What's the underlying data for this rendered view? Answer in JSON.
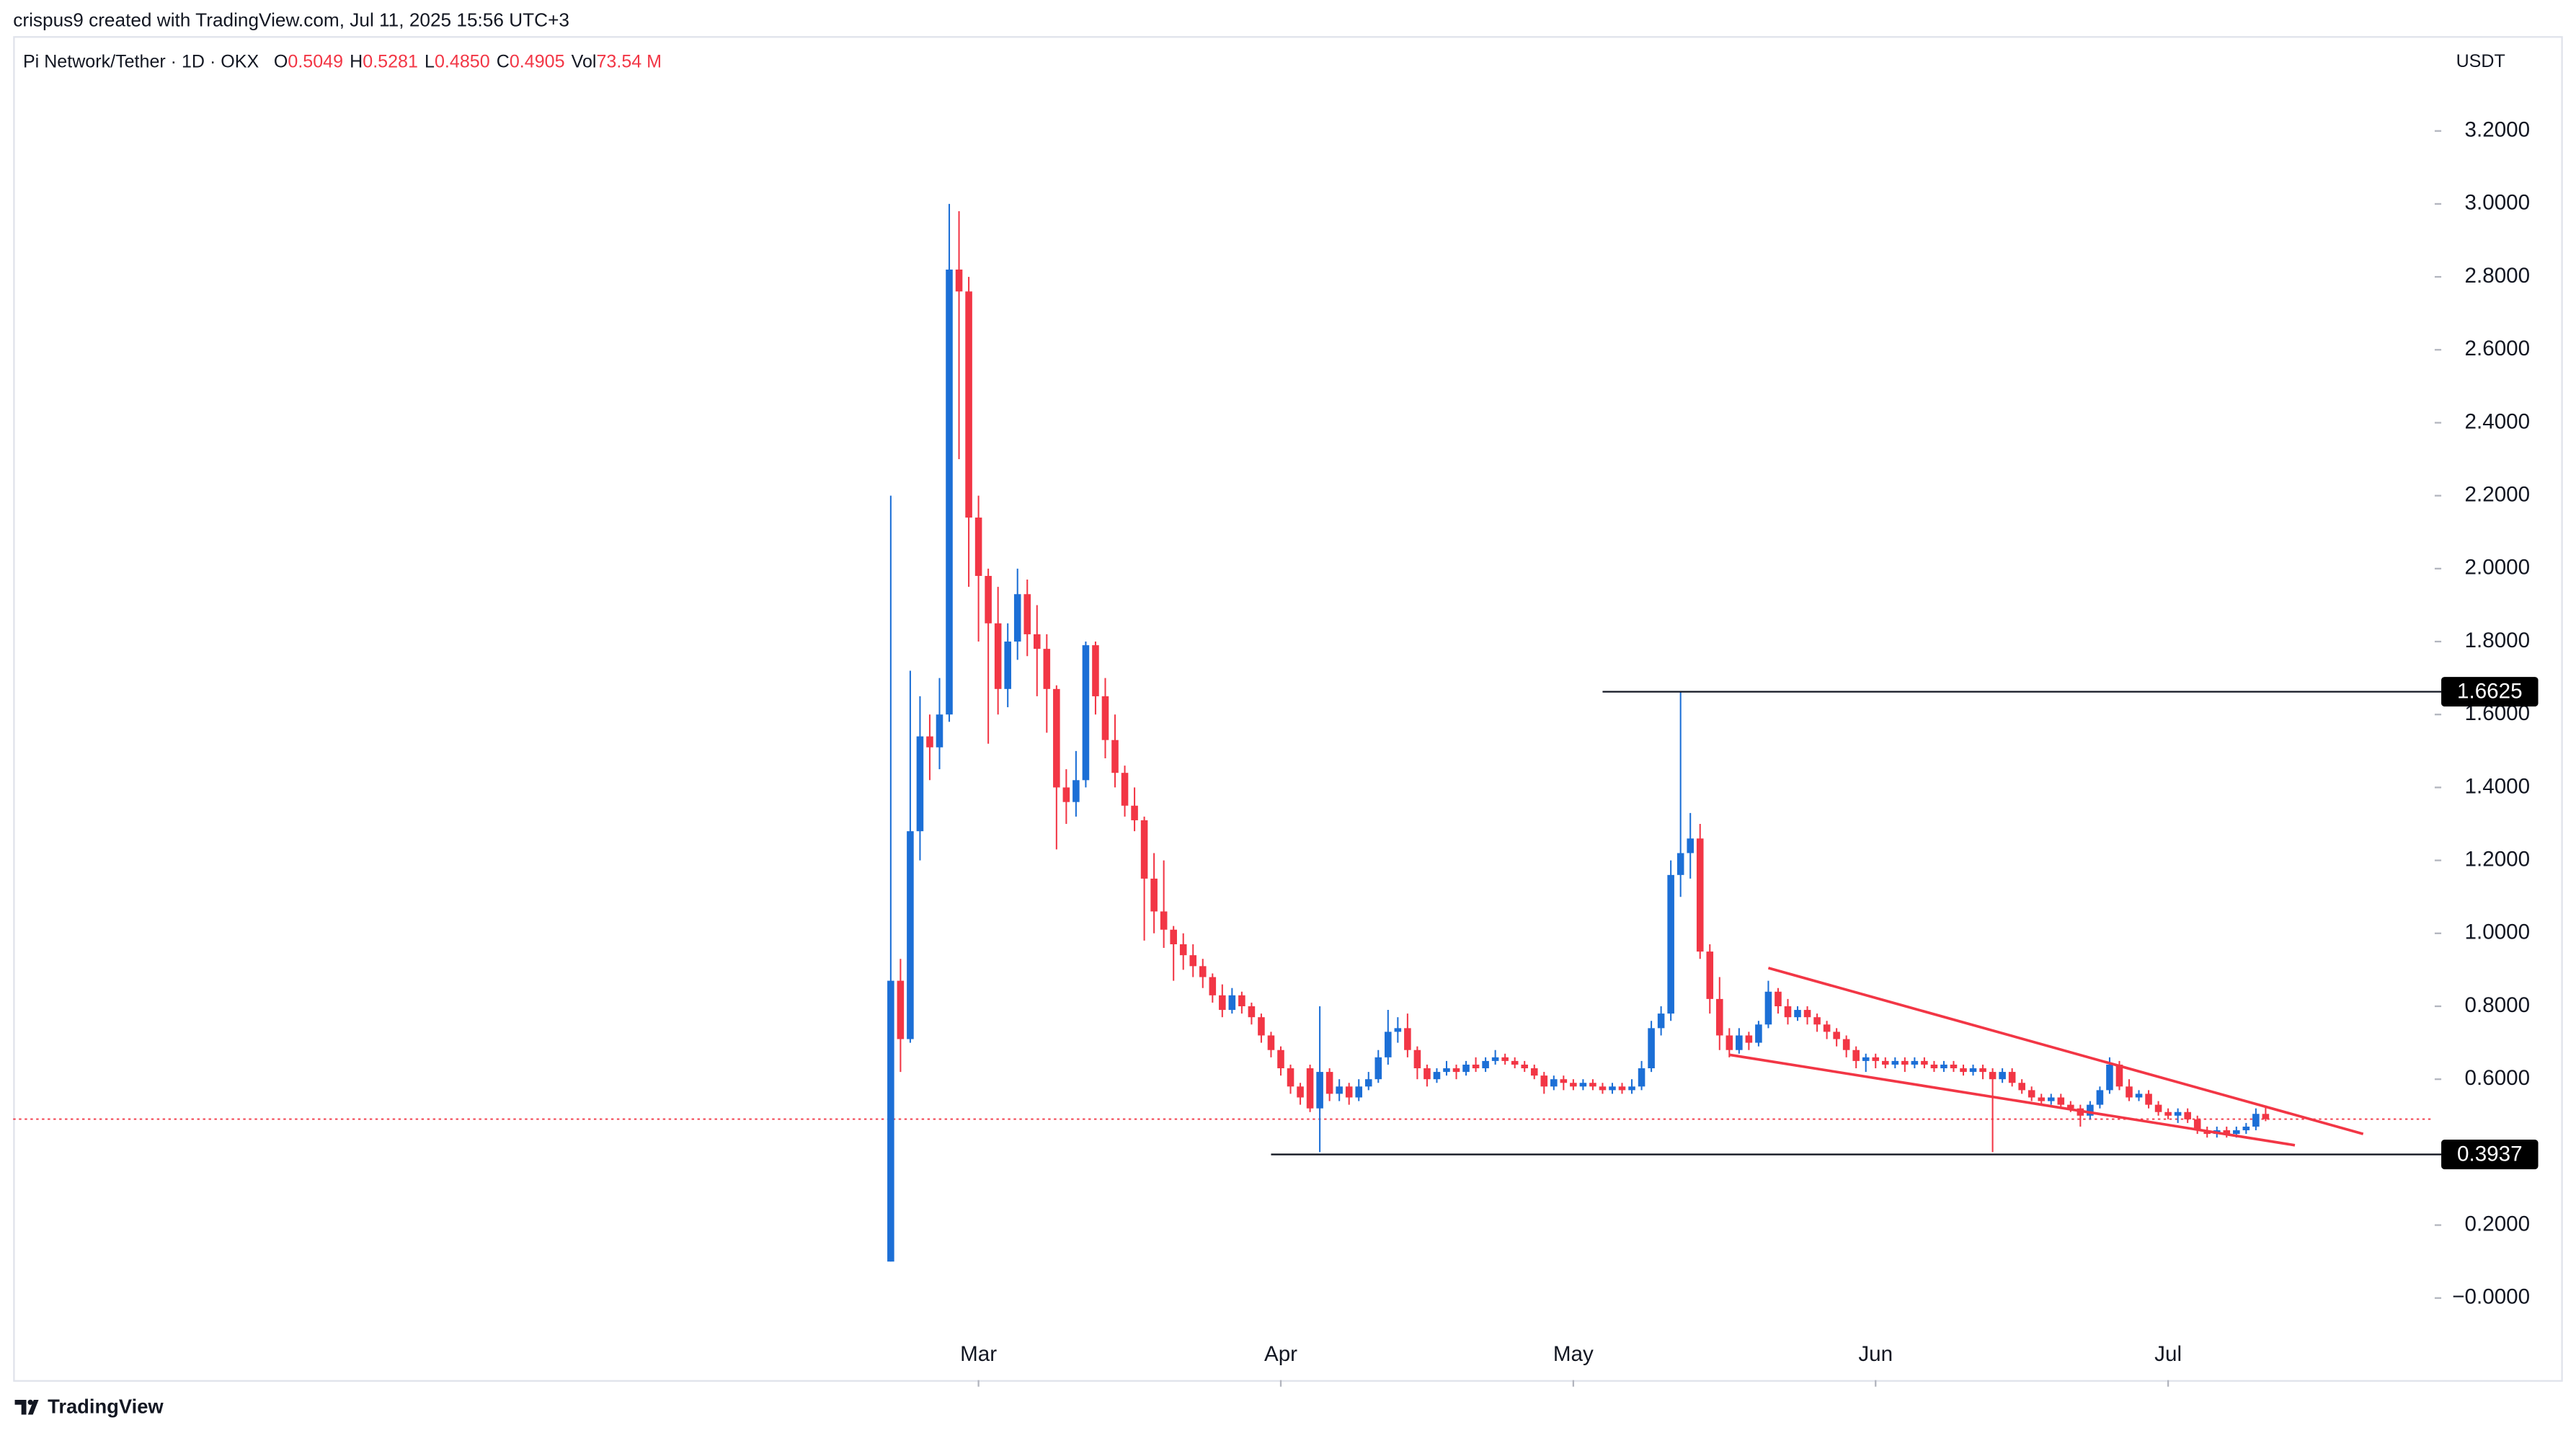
{
  "header": {
    "credit": "crispus9 created with TradingView.com, Jul 11, 2025 15:56 UTC+3",
    "footer": "TradingView"
  },
  "chart_data": {
    "type": "candlestick",
    "symbol": "Pi Network/Tether · 1D · OKX",
    "ohlc_legend": [
      {
        "key": "O",
        "value": "0.5049"
      },
      {
        "key": "H",
        "value": "0.5281"
      },
      {
        "key": "L",
        "value": "0.4850"
      },
      {
        "key": "C",
        "value": "0.4905"
      },
      {
        "key": "Vol",
        "value": "73.54 M"
      }
    ],
    "currency": "USDT",
    "up_color": "#1c6fd6",
    "down_color": "#f23645",
    "open": [
      0.1,
      0.87,
      0.71,
      1.28,
      1.54,
      1.51,
      1.6,
      2.82,
      2.76,
      2.14,
      1.98,
      1.85,
      1.67,
      1.8,
      1.93,
      1.82,
      1.78,
      1.67,
      1.4,
      1.36,
      1.42,
      1.79,
      1.65,
      1.53,
      1.44,
      1.35,
      1.31,
      1.15,
      1.06,
      1.01,
      0.97,
      0.94,
      0.91,
      0.88,
      0.83,
      0.79,
      0.83,
      0.8,
      0.77,
      0.72,
      0.68,
      0.63,
      0.58,
      0.63,
      0.52,
      0.62,
      0.56,
      0.58,
      0.55,
      0.58,
      0.6,
      0.66,
      0.73,
      0.74,
      0.68,
      0.63,
      0.6,
      0.62,
      0.63,
      0.62,
      0.64,
      0.63,
      0.65,
      0.66,
      0.65,
      0.64,
      0.63,
      0.61,
      0.58,
      0.6,
      0.59,
      0.58,
      0.59,
      0.58,
      0.57,
      0.58,
      0.57,
      0.58,
      0.63,
      0.74,
      0.78,
      1.16,
      1.22,
      1.26,
      0.95,
      0.82,
      0.72,
      0.68,
      0.72,
      0.7,
      0.75,
      0.84,
      0.8,
      0.77,
      0.79,
      0.77,
      0.75,
      0.73,
      0.71,
      0.68,
      0.65,
      0.66,
      0.65,
      0.64,
      0.65,
      0.64,
      0.65,
      0.64,
      0.63,
      0.64,
      0.63,
      0.62,
      0.63,
      0.62,
      0.6,
      0.62,
      0.59,
      0.57,
      0.55,
      0.54,
      0.55,
      0.53,
      0.52,
      0.5,
      0.53,
      0.57,
      0.64,
      0.58,
      0.55,
      0.56,
      0.53,
      0.51,
      0.5,
      0.51,
      0.49,
      0.46,
      0.45,
      0.46,
      0.45,
      0.46,
      0.47,
      0.5049
    ],
    "high": [
      2.2,
      0.93,
      1.72,
      1.65,
      1.6,
      1.7,
      3.0,
      2.98,
      2.8,
      2.2,
      2.0,
      1.95,
      1.85,
      2.0,
      1.97,
      1.9,
      1.82,
      1.68,
      1.45,
      1.5,
      1.8,
      1.8,
      1.7,
      1.6,
      1.46,
      1.4,
      1.32,
      1.22,
      1.2,
      1.02,
      1.0,
      0.97,
      0.93,
      0.89,
      0.86,
      0.85,
      0.84,
      0.81,
      0.78,
      0.73,
      0.69,
      0.64,
      0.59,
      0.64,
      0.8,
      0.63,
      0.6,
      0.59,
      0.6,
      0.62,
      0.68,
      0.79,
      0.77,
      0.78,
      0.69,
      0.64,
      0.63,
      0.65,
      0.64,
      0.65,
      0.66,
      0.66,
      0.68,
      0.67,
      0.66,
      0.65,
      0.64,
      0.62,
      0.61,
      0.61,
      0.6,
      0.6,
      0.6,
      0.59,
      0.59,
      0.59,
      0.6,
      0.65,
      0.76,
      0.8,
      1.2,
      1.6625,
      1.33,
      1.3,
      0.97,
      0.88,
      0.74,
      0.74,
      0.73,
      0.76,
      0.87,
      0.85,
      0.82,
      0.8,
      0.8,
      0.78,
      0.76,
      0.74,
      0.72,
      0.69,
      0.67,
      0.67,
      0.66,
      0.66,
      0.66,
      0.66,
      0.66,
      0.65,
      0.65,
      0.65,
      0.64,
      0.64,
      0.64,
      0.63,
      0.63,
      0.63,
      0.6,
      0.58,
      0.56,
      0.56,
      0.56,
      0.54,
      0.53,
      0.54,
      0.58,
      0.66,
      0.65,
      0.6,
      0.57,
      0.57,
      0.54,
      0.52,
      0.52,
      0.52,
      0.5,
      0.47,
      0.47,
      0.47,
      0.47,
      0.48,
      0.52,
      0.5281
    ],
    "low": [
      0.1,
      0.62,
      0.7,
      1.2,
      1.42,
      1.45,
      1.58,
      2.3,
      1.95,
      1.8,
      1.52,
      1.6,
      1.62,
      1.75,
      1.76,
      1.65,
      1.55,
      1.23,
      1.3,
      1.32,
      1.4,
      1.6,
      1.48,
      1.4,
      1.32,
      1.28,
      0.98,
      1.0,
      0.96,
      0.87,
      0.9,
      0.88,
      0.85,
      0.81,
      0.77,
      0.78,
      0.78,
      0.75,
      0.7,
      0.66,
      0.61,
      0.56,
      0.53,
      0.51,
      0.4,
      0.54,
      0.54,
      0.53,
      0.54,
      0.57,
      0.59,
      0.64,
      0.7,
      0.66,
      0.6,
      0.58,
      0.59,
      0.61,
      0.6,
      0.61,
      0.62,
      0.62,
      0.64,
      0.64,
      0.63,
      0.62,
      0.6,
      0.56,
      0.57,
      0.57,
      0.57,
      0.57,
      0.57,
      0.56,
      0.56,
      0.56,
      0.56,
      0.57,
      0.62,
      0.72,
      0.76,
      1.1,
      1.15,
      0.93,
      0.78,
      0.68,
      0.66,
      0.67,
      0.68,
      0.69,
      0.74,
      0.78,
      0.75,
      0.76,
      0.75,
      0.73,
      0.71,
      0.69,
      0.66,
      0.63,
      0.62,
      0.63,
      0.63,
      0.63,
      0.62,
      0.63,
      0.63,
      0.62,
      0.62,
      0.62,
      0.61,
      0.61,
      0.6,
      0.4,
      0.59,
      0.58,
      0.56,
      0.54,
      0.53,
      0.53,
      0.52,
      0.51,
      0.47,
      0.49,
      0.52,
      0.56,
      0.57,
      0.54,
      0.54,
      0.52,
      0.5,
      0.49,
      0.48,
      0.48,
      0.45,
      0.44,
      0.44,
      0.44,
      0.44,
      0.45,
      0.46,
      0.485
    ],
    "close": [
      0.87,
      0.71,
      1.28,
      1.54,
      1.51,
      1.6,
      2.82,
      2.76,
      2.14,
      1.98,
      1.85,
      1.67,
      1.8,
      1.93,
      1.82,
      1.78,
      1.67,
      1.4,
      1.36,
      1.42,
      1.79,
      1.65,
      1.53,
      1.44,
      1.35,
      1.31,
      1.15,
      1.06,
      1.01,
      0.97,
      0.94,
      0.91,
      0.88,
      0.83,
      0.79,
      0.83,
      0.8,
      0.77,
      0.72,
      0.68,
      0.63,
      0.58,
      0.55,
      0.52,
      0.62,
      0.56,
      0.58,
      0.55,
      0.58,
      0.6,
      0.66,
      0.73,
      0.74,
      0.68,
      0.63,
      0.6,
      0.62,
      0.63,
      0.62,
      0.64,
      0.63,
      0.65,
      0.66,
      0.65,
      0.64,
      0.63,
      0.61,
      0.58,
      0.6,
      0.59,
      0.58,
      0.59,
      0.58,
      0.57,
      0.58,
      0.57,
      0.58,
      0.63,
      0.74,
      0.78,
      1.16,
      1.22,
      1.26,
      0.95,
      0.82,
      0.72,
      0.68,
      0.72,
      0.7,
      0.75,
      0.84,
      0.8,
      0.77,
      0.79,
      0.77,
      0.75,
      0.73,
      0.71,
      0.68,
      0.65,
      0.66,
      0.65,
      0.64,
      0.65,
      0.64,
      0.65,
      0.64,
      0.63,
      0.64,
      0.63,
      0.62,
      0.63,
      0.62,
      0.6,
      0.62,
      0.59,
      0.57,
      0.55,
      0.54,
      0.55,
      0.53,
      0.52,
      0.5,
      0.53,
      0.57,
      0.64,
      0.58,
      0.55,
      0.56,
      0.53,
      0.51,
      0.5,
      0.51,
      0.49,
      0.46,
      0.45,
      0.46,
      0.45,
      0.46,
      0.47,
      0.505,
      0.4905
    ],
    "xlim": [
      -90,
      158
    ],
    "xticks": [
      {
        "value": 9,
        "label": "Mar"
      },
      {
        "value": 40,
        "label": "Apr"
      },
      {
        "value": 70,
        "label": "May"
      },
      {
        "value": 101,
        "label": "Jun"
      },
      {
        "value": 131,
        "label": "Jul"
      }
    ],
    "ylim": [
      -0.225,
      3.46
    ],
    "yticks": [
      {
        "value": 0,
        "label": "−0.0000"
      },
      {
        "value": 0.2,
        "label": "0.2000"
      },
      {
        "value": 0.6,
        "label": "0.6000"
      },
      {
        "value": 0.8,
        "label": "0.8000"
      },
      {
        "value": 1,
        "label": "1.0000"
      },
      {
        "value": 1.2,
        "label": "1.2000"
      },
      {
        "value": 1.4,
        "label": "1.4000"
      },
      {
        "value": 1.6,
        "label": "1.6000"
      },
      {
        "value": 1.8,
        "label": "1.8000"
      },
      {
        "value": 2,
        "label": "2.0000"
      },
      {
        "value": 2.2,
        "label": "2.2000"
      },
      {
        "value": 2.4,
        "label": "2.4000"
      },
      {
        "value": 2.6,
        "label": "2.6000"
      },
      {
        "value": 2.8,
        "label": "2.8000"
      },
      {
        "value": 3,
        "label": "3.0000"
      },
      {
        "value": 3.2,
        "label": "3.2000"
      }
    ],
    "last_price": 0.4905,
    "levels": [
      {
        "value": 1.6625,
        "start": 73
      },
      {
        "value": 0.3937,
        "start": 39
      }
    ],
    "trendlines": [
      {
        "x": [
          90,
          151
        ],
        "y": [
          0.905,
          0.45
        ],
        "color": "#f23645"
      },
      {
        "x": [
          86,
          144
        ],
        "y": [
          0.667,
          0.419
        ],
        "color": "#f23645"
      }
    ]
  }
}
